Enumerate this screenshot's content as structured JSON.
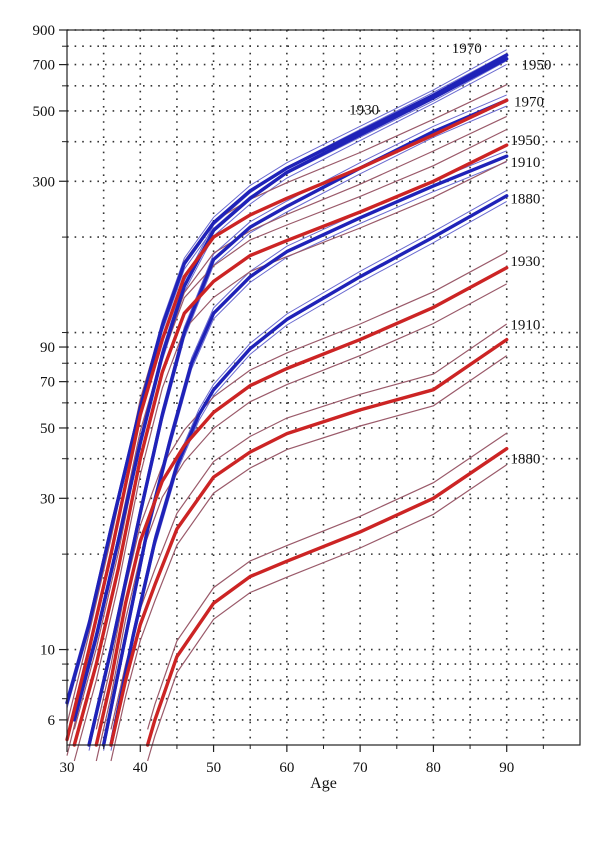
{
  "chart_data": {
    "type": "line",
    "title": "",
    "xlabel": "Age",
    "ylabel": "",
    "xlim": [
      30,
      100
    ],
    "ylim": [
      5,
      900
    ],
    "yscale": "log",
    "grid": true,
    "grid_style": "dotted",
    "x_ticks": [
      30,
      40,
      50,
      60,
      70,
      80,
      90
    ],
    "x_tick_labels": [
      "30",
      "40",
      "50",
      "60",
      "70",
      "80",
      "90"
    ],
    "y_ticks": [
      6,
      10,
      30,
      50,
      70,
      90,
      300,
      500,
      700,
      900
    ],
    "y_tick_labels": [
      "6",
      "10",
      "30",
      "50",
      "70",
      "90",
      "300",
      "500",
      "700",
      "900"
    ],
    "colors": {
      "blue": "#1f22b8",
      "red": "#cc2424",
      "band": "#9a5a6a"
    },
    "series": [
      {
        "name": "1970",
        "color": "blue",
        "band": false,
        "x": [
          30,
          33,
          36,
          40,
          43,
          46,
          50,
          55,
          60,
          70,
          80,
          90
        ],
        "y": [
          6.8,
          12,
          24,
          58,
          105,
          165,
          222,
          280,
          330,
          430,
          560,
          750
        ]
      },
      {
        "name": "1950",
        "color": "blue",
        "band": false,
        "x": [
          31,
          34,
          37,
          40,
          43,
          46,
          50,
          55,
          60,
          70,
          80,
          90
        ],
        "y": [
          6,
          11,
          22,
          45,
          85,
          140,
          210,
          265,
          320,
          420,
          550,
          730
        ]
      },
      {
        "name": "1930",
        "color": "blue",
        "band": false,
        "x": [
          33,
          36,
          40,
          43,
          46,
          50,
          55,
          60,
          70,
          80,
          90
        ],
        "y": [
          5,
          10,
          27,
          55,
          100,
          170,
          215,
          250,
          330,
          430,
          540
        ]
      },
      {
        "name": "1910",
        "color": "blue",
        "band": false,
        "x": [
          35,
          38,
          41,
          44,
          47,
          50,
          55,
          60,
          70,
          80,
          90
        ],
        "y": [
          5,
          11,
          24,
          45,
          80,
          115,
          150,
          180,
          230,
          290,
          360
        ]
      },
      {
        "name": "1880",
        "color": "blue",
        "band": false,
        "x": [
          36,
          39,
          42,
          45,
          48,
          50,
          55,
          60,
          70,
          80,
          90
        ],
        "y": [
          5,
          11,
          22,
          38,
          55,
          66,
          89,
          110,
          150,
          200,
          270
        ]
      },
      {
        "name": "1970",
        "color": "red",
        "band": true,
        "x": [
          30,
          33,
          36,
          40,
          43,
          46,
          50,
          55,
          60,
          70,
          80,
          90
        ],
        "y": [
          5.2,
          10,
          20,
          55,
          95,
          150,
          200,
          235,
          265,
          330,
          420,
          540
        ]
      },
      {
        "name": "1950",
        "color": "red",
        "band": true,
        "x": [
          31,
          34,
          37,
          40,
          43,
          46,
          50,
          55,
          60,
          70,
          80,
          90
        ],
        "y": [
          5,
          9,
          18,
          40,
          75,
          115,
          145,
          175,
          195,
          240,
          300,
          390
        ]
      },
      {
        "name": "1930",
        "color": "red",
        "band": true,
        "x": [
          34,
          36,
          38,
          40,
          43,
          46,
          50,
          55,
          60,
          70,
          80,
          90
        ],
        "y": [
          5,
          8,
          14,
          22,
          34,
          44,
          56,
          68,
          77,
          95,
          120,
          160
        ]
      },
      {
        "name": "1910",
        "color": "red",
        "band": true,
        "x": [
          36,
          38,
          40,
          42,
          45,
          50,
          55,
          60,
          70,
          80,
          90
        ],
        "y": [
          5,
          8,
          12,
          16,
          24,
          35,
          42,
          48,
          57,
          66,
          95
        ]
      },
      {
        "name": "1880",
        "color": "red",
        "band": true,
        "x": [
          41,
          42,
          45,
          50,
          55,
          60,
          70,
          80,
          90
        ],
        "y": [
          5,
          6,
          9.5,
          14,
          17,
          19,
          23.5,
          30,
          43
        ]
      }
    ],
    "annotations": [
      {
        "text": "1970",
        "x": 82.5,
        "y": 790
      },
      {
        "text": "1950",
        "x": 92.0,
        "y": 700
      },
      {
        "text": "1930",
        "x": 68.5,
        "y": 505
      },
      {
        "text": "1970",
        "x": 91.0,
        "y": 535
      },
      {
        "text": "1950",
        "x": 90.5,
        "y": 405
      },
      {
        "text": "1910",
        "x": 90.5,
        "y": 345
      },
      {
        "text": "1880",
        "x": 90.5,
        "y": 265
      },
      {
        "text": "1930",
        "x": 90.5,
        "y": 168
      },
      {
        "text": "1910",
        "x": 90.5,
        "y": 106
      },
      {
        "text": "1880",
        "x": 90.5,
        "y": 40
      }
    ]
  }
}
